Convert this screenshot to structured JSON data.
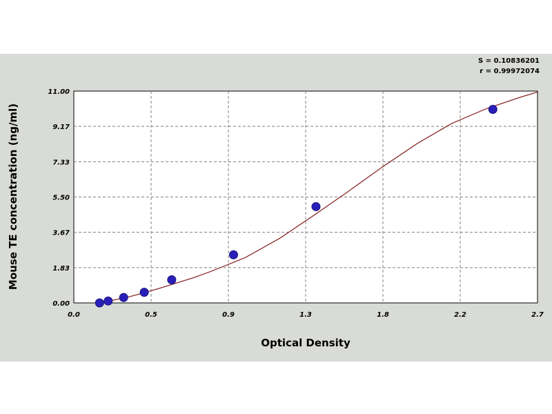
{
  "chart_data": {
    "type": "scatter",
    "title": "",
    "xlabel": "Optical Density",
    "ylabel": "Mouse TE concentration (ng/ml)",
    "xlim": [
      0.0,
      2.7
    ],
    "ylim": [
      0.0,
      11.0
    ],
    "x_ticks": [
      "0.0",
      "0.5",
      "0.9",
      "1.3",
      "1.8",
      "2.2",
      "2.7"
    ],
    "y_ticks": [
      "0.00",
      "1.83",
      "3.67",
      "5.50",
      "7.33",
      "9.17",
      "11.00"
    ],
    "grid": true,
    "stats": [
      "S = 0.10836201",
      "r = 0.99972074"
    ],
    "colors": {
      "point": "#2a1fb8",
      "curve": "#8a2a2a",
      "plot_background": "#ffffff",
      "figure_background": "#d9dbd6",
      "grid": "#7f7f7f"
    },
    "series": [
      {
        "x": [
          0.15,
          0.2,
          0.29,
          0.41,
          0.57,
          0.93,
          1.41,
          2.44
        ],
        "y": [
          0.0,
          0.1,
          0.28,
          0.55,
          1.2,
          2.5,
          5.0,
          10.05
        ]
      }
    ],
    "curve": {
      "x": [
        0.12,
        0.2,
        0.3,
        0.4,
        0.5,
        0.6,
        0.7,
        0.8,
        0.9,
        1.0,
        1.2,
        1.4,
        1.6,
        1.8,
        2.0,
        2.2,
        2.4,
        2.6,
        2.7
      ],
      "y": [
        0.0,
        0.09,
        0.27,
        0.5,
        0.76,
        1.04,
        1.32,
        1.64,
        2.0,
        2.36,
        3.36,
        4.56,
        5.8,
        7.08,
        8.28,
        9.32,
        10.08,
        10.68,
        10.95
      ]
    }
  }
}
